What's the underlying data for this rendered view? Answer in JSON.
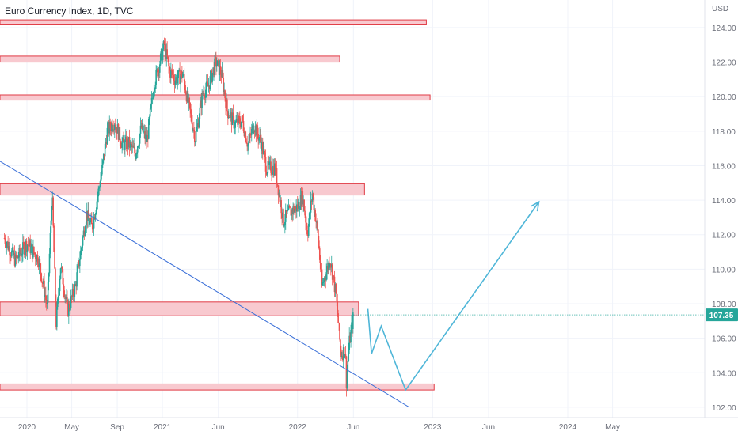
{
  "header": {
    "title": "Euro Currency Index, 1D, TVC",
    "unit": "USD"
  },
  "colors": {
    "zone_fill": "#f8c9cf",
    "zone_stroke": "#e03a44",
    "candle_up": "#26a69a",
    "candle_down": "#ef5350",
    "trendline": "#3a6fd8",
    "projection": "#4fb6d8",
    "price_tag": "#26a69a",
    "grid": "#f0f3fa",
    "axis_text": "#6a6d78"
  },
  "chart_data": {
    "type": "candlestick",
    "title": "Euro Currency Index, 1D, TVC",
    "ylabel": "USD",
    "ylim": [
      101.4,
      125.6
    ],
    "y_ticks": [
      "124.00",
      "122.00",
      "120.00",
      "118.00",
      "116.00",
      "114.00",
      "112.00",
      "110.00",
      "108.00",
      "106.00",
      "104.00",
      "102.00"
    ],
    "x_ticks": [
      "2020",
      "May",
      "Sep",
      "2021",
      "Jun",
      "2022",
      "Jun",
      "2023",
      "Jun",
      "2024",
      "May"
    ],
    "last_price": "107.35",
    "price_path": [
      [
        "2019-11-01",
        111.8
      ],
      [
        "2019-12-01",
        110.5
      ],
      [
        "2020-01-01",
        111.5
      ],
      [
        "2020-02-01",
        110.6
      ],
      [
        "2020-02-25",
        107.8
      ],
      [
        "2020-03-09",
        114.4
      ],
      [
        "2020-03-20",
        106.9
      ],
      [
        "2020-04-01",
        110.2
      ],
      [
        "2020-04-20",
        107.6
      ],
      [
        "2020-05-10",
        108.9
      ],
      [
        "2020-06-10",
        113.2
      ],
      [
        "2020-06-25",
        112.4
      ],
      [
        "2020-07-20",
        115.5
      ],
      [
        "2020-08-05",
        118.0
      ],
      [
        "2020-08-25",
        118.6
      ],
      [
        "2020-09-15",
        117.2
      ],
      [
        "2020-10-01",
        117.3
      ],
      [
        "2020-10-20",
        116.7
      ],
      [
        "2020-11-05",
        118.2
      ],
      [
        "2020-11-20",
        117.4
      ],
      [
        "2020-12-10",
        120.8
      ],
      [
        "2020-12-25",
        122.0
      ],
      [
        "2021-01-06",
        123.0
      ],
      [
        "2021-01-20",
        121.5
      ],
      [
        "2021-02-05",
        121.0
      ],
      [
        "2021-02-25",
        121.3
      ],
      [
        "2021-03-10",
        119.8
      ],
      [
        "2021-03-31",
        117.6
      ],
      [
        "2021-04-20",
        120.2
      ],
      [
        "2021-05-05",
        120.6
      ],
      [
        "2021-05-25",
        122.0
      ],
      [
        "2021-06-10",
        121.3
      ],
      [
        "2021-06-25",
        119.2
      ],
      [
        "2021-07-15",
        118.4
      ],
      [
        "2021-08-05",
        118.6
      ],
      [
        "2021-08-20",
        117.2
      ],
      [
        "2021-09-05",
        118.4
      ],
      [
        "2021-09-25",
        117.3
      ],
      [
        "2021-10-10",
        115.8
      ],
      [
        "2021-11-01",
        115.9
      ],
      [
        "2021-11-24",
        112.8
      ],
      [
        "2021-12-10",
        113.3
      ],
      [
        "2021-12-31",
        113.6
      ],
      [
        "2022-01-15",
        114.2
      ],
      [
        "2022-01-28",
        112.1
      ],
      [
        "2022-02-10",
        114.4
      ],
      [
        "2022-02-25",
        112.0
      ],
      [
        "2022-03-08",
        109.0
      ],
      [
        "2022-03-30",
        110.6
      ],
      [
        "2022-04-15",
        108.5
      ],
      [
        "2022-04-28",
        105.1
      ],
      [
        "2022-05-10",
        105.3
      ],
      [
        "2022-05-13",
        103.5
      ],
      [
        "2022-05-20",
        105.6
      ],
      [
        "2022-06-01",
        107.3
      ]
    ],
    "zones": [
      {
        "y1": 124.2,
        "y2": 124.45,
        "start": "2019-10-01",
        "end": "2022-12-15"
      },
      {
        "y1": 122.0,
        "y2": 122.35,
        "start": "2019-10-01",
        "end": "2022-04-25"
      },
      {
        "y1": 119.8,
        "y2": 120.1,
        "start": "2019-10-01",
        "end": "2022-12-25"
      },
      {
        "y1": 114.3,
        "y2": 114.95,
        "start": "2019-10-01",
        "end": "2022-07-01"
      },
      {
        "y1": 107.3,
        "y2": 108.1,
        "start": "2019-10-01",
        "end": "2022-06-15"
      },
      {
        "y1": 103.0,
        "y2": 103.35,
        "start": "2019-10-01",
        "end": "2023-01-05"
      }
    ],
    "trendline": [
      [
        "2019-10-01",
        116.5
      ],
      [
        "2022-10-30",
        102.0
      ]
    ],
    "projection": [
      [
        "2022-07-10",
        107.7
      ],
      [
        "2022-07-20",
        105.1
      ],
      [
        "2022-08-15",
        106.7
      ],
      [
        "2022-10-20",
        103.0
      ],
      [
        "2023-10-15",
        113.9
      ]
    ],
    "horizontal_line": 107.35,
    "grid": true
  }
}
